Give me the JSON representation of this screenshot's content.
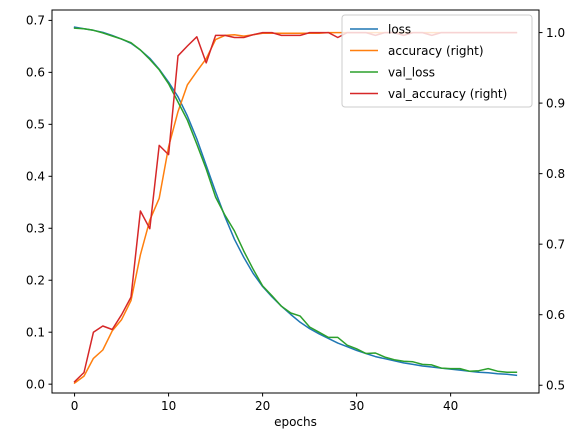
{
  "chart_data": {
    "type": "line",
    "xlabel": "epochs",
    "ylabel": "",
    "y2label": "",
    "xlim": [
      -2.4,
      49.4
    ],
    "ylim": [
      -0.017,
      0.72
    ],
    "y2lim": [
      0.489,
      1.032
    ],
    "x_ticks": [
      0,
      10,
      20,
      30,
      40
    ],
    "y_ticks": [
      0.0,
      0.1,
      0.2,
      0.3,
      0.4,
      0.5,
      0.6,
      0.7
    ],
    "y_tick_labels": [
      "0.0",
      "0.1",
      "0.2",
      "0.3",
      "0.4",
      "0.5",
      "0.6",
      "0.7"
    ],
    "y2_ticks": [
      0.5,
      0.6,
      0.7,
      0.8,
      0.9,
      1.0
    ],
    "y2_tick_labels": [
      "0.5",
      "0.6",
      "0.7",
      "0.8",
      "0.9",
      "1.0"
    ],
    "grid": false,
    "legend_position": "top-right",
    "x": [
      0,
      1,
      2,
      3,
      4,
      5,
      6,
      7,
      8,
      9,
      10,
      11,
      12,
      13,
      14,
      15,
      16,
      17,
      18,
      19,
      20,
      21,
      22,
      23,
      24,
      25,
      26,
      27,
      28,
      29,
      30,
      31,
      32,
      33,
      34,
      35,
      36,
      37,
      38,
      39,
      40,
      41,
      42,
      43,
      44,
      45,
      46,
      47
    ],
    "series": [
      {
        "name": "loss",
        "axis": "left",
        "color": "#1f77b4",
        "values": [
          0.687,
          0.684,
          0.681,
          0.677,
          0.671,
          0.664,
          0.656,
          0.643,
          0.627,
          0.606,
          0.581,
          0.553,
          0.516,
          0.472,
          0.421,
          0.37,
          0.322,
          0.279,
          0.244,
          0.213,
          0.188,
          0.168,
          0.15,
          0.134,
          0.119,
          0.107,
          0.097,
          0.088,
          0.079,
          0.072,
          0.065,
          0.059,
          0.053,
          0.049,
          0.045,
          0.041,
          0.038,
          0.035,
          0.033,
          0.031,
          0.029,
          0.027,
          0.025,
          0.023,
          0.022,
          0.02,
          0.019,
          0.017
        ]
      },
      {
        "name": "accuracy (right)",
        "axis": "right",
        "color": "#ff7f0e",
        "values": [
          0.503,
          0.513,
          0.538,
          0.55,
          0.577,
          0.593,
          0.62,
          0.685,
          0.734,
          0.765,
          0.838,
          0.888,
          0.926,
          0.945,
          0.963,
          0.99,
          0.996,
          0.997,
          0.995,
          0.997,
          0.999,
          0.999,
          0.999,
          0.999,
          0.999,
          0.999,
          0.999,
          1.0,
          1.0,
          1.0,
          1.0,
          1.0,
          1.0,
          1.0,
          1.0,
          1.0,
          1.0,
          1.0,
          1.0,
          1.0,
          1.0,
          1.0,
          1.0,
          1.0,
          1.0,
          1.0,
          1.0,
          1.0
        ]
      },
      {
        "name": "val_loss",
        "axis": "left",
        "color": "#2ca02c",
        "values": [
          0.685,
          0.684,
          0.681,
          0.676,
          0.67,
          0.664,
          0.657,
          0.643,
          0.625,
          0.605,
          0.578,
          0.543,
          0.508,
          0.462,
          0.414,
          0.36,
          0.325,
          0.295,
          0.256,
          0.221,
          0.189,
          0.17,
          0.15,
          0.137,
          0.131,
          0.11,
          0.1,
          0.09,
          0.09,
          0.075,
          0.068,
          0.059,
          0.06,
          0.052,
          0.047,
          0.044,
          0.043,
          0.038,
          0.037,
          0.031,
          0.03,
          0.03,
          0.025,
          0.026,
          0.03,
          0.025,
          0.023,
          0.023
        ]
      },
      {
        "name": "val_accuracy (right)",
        "axis": "right",
        "color": "#d62728",
        "values": [
          0.505,
          0.518,
          0.575,
          0.584,
          0.579,
          0.6,
          0.625,
          0.747,
          0.722,
          0.84,
          0.827,
          0.967,
          0.981,
          0.994,
          0.957,
          0.996,
          0.996,
          0.993,
          0.993,
          0.997,
          1.0,
          1.0,
          0.996,
          0.996,
          0.996,
          1.0,
          1.0,
          1.0,
          0.993,
          1.0,
          1.0,
          1.0,
          0.996,
          1.0,
          1.0,
          0.996,
          1.0,
          1.0,
          0.996,
          1.0,
          1.0,
          1.0,
          1.0,
          1.0,
          1.0,
          1.0,
          1.0,
          1.0
        ]
      }
    ]
  }
}
